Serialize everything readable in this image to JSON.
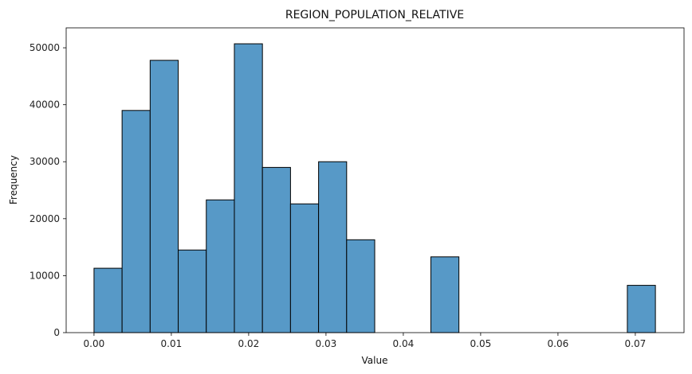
{
  "chart_data": {
    "type": "bar",
    "title": "REGION_POPULATION_RELATIVE",
    "xlabel": "Value",
    "ylabel": "Frequency",
    "xlim": [
      -0.0036,
      0.0763
    ],
    "ylim": [
      0,
      53500
    ],
    "xticks": [
      "0.00",
      "0.01",
      "0.02",
      "0.03",
      "0.04",
      "0.05",
      "0.06",
      "0.07"
    ],
    "yticks": [
      "0",
      "10000",
      "20000",
      "30000",
      "40000",
      "50000"
    ],
    "bin_edges": [
      0.0,
      0.00363,
      0.00726,
      0.01089,
      0.01452,
      0.01815,
      0.02178,
      0.02541,
      0.02904,
      0.03267,
      0.0363,
      0.03993,
      0.04356,
      0.04719,
      0.05082,
      0.05445,
      0.05808,
      0.06171,
      0.06534,
      0.06897,
      0.0726
    ],
    "values": [
      11300,
      39000,
      47800,
      14500,
      23300,
      50700,
      29000,
      22600,
      30000,
      16300,
      0,
      0,
      13300,
      0,
      0,
      0,
      0,
      0,
      0,
      8300
    ],
    "bar_color": "#5799c7",
    "edge_color": "#000000",
    "grid": false,
    "legend": "none"
  }
}
